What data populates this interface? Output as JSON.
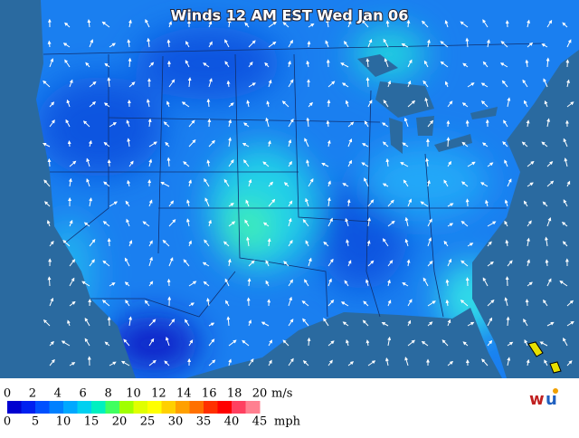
{
  "title": "Winds 12 AM EST Wed Jan 06",
  "legend": {
    "ms_labels": [
      0,
      2,
      4,
      6,
      8,
      10,
      12,
      14,
      16,
      18,
      20
    ],
    "ms_unit": "m/s",
    "mph_labels": [
      0,
      5,
      10,
      15,
      20,
      25,
      30,
      35,
      40,
      45
    ],
    "mph_unit": "mph",
    "colors": [
      "#0000d0",
      "#0020f0",
      "#0050ff",
      "#0080ff",
      "#00a8ff",
      "#00d0f0",
      "#00f0c0",
      "#40ff60",
      "#a0ff00",
      "#e0ff00",
      "#ffff00",
      "#ffd000",
      "#ffa000",
      "#ff7000",
      "#ff3000",
      "#ff0000",
      "#ff4060",
      "#ff8090"
    ]
  }
}
